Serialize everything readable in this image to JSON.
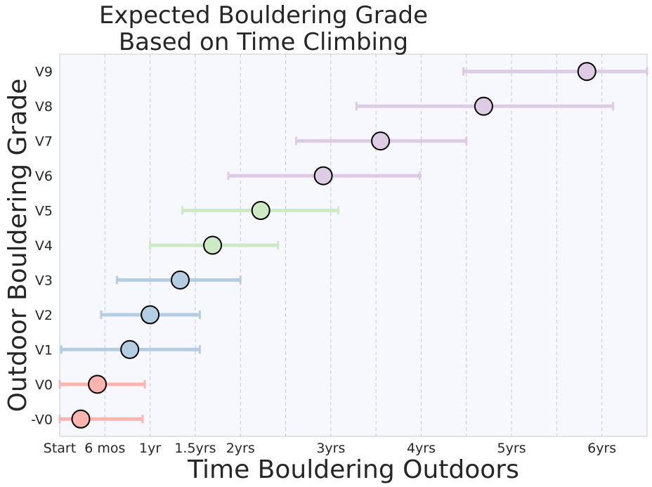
{
  "chart_data": {
    "type": "scatter",
    "title_line1": "Expected Bouldering Grade",
    "title_line2": "Based on Time Climbing",
    "xlabel": "Time Bouldering Outdoors",
    "ylabel": "Outdoor Bouldering Grade",
    "x_unit": "months",
    "xlim": [
      0,
      78
    ],
    "x_ticks": [
      {
        "value": 0,
        "label": "Start"
      },
      {
        "value": 6,
        "label": "6 mos"
      },
      {
        "value": 12,
        "label": "1yr"
      },
      {
        "value": 18,
        "label": "1.5yrs"
      },
      {
        "value": 24,
        "label": "2yrs"
      },
      {
        "value": 36,
        "label": "3yrs"
      },
      {
        "value": 48,
        "label": "4yrs"
      },
      {
        "value": 60,
        "label": "5yrs"
      },
      {
        "value": 72,
        "label": "6yrs"
      }
    ],
    "x_gridlines": [
      0,
      6,
      12,
      18,
      24,
      30,
      36,
      42,
      48,
      54,
      60,
      66,
      72,
      78
    ],
    "grid": "vertical dashed",
    "background_color": "#f7f8fd",
    "marker_edge_color": "#000000",
    "grades": [
      {
        "grade": "-V0",
        "value": 2.8,
        "low": 0,
        "high": 11,
        "color": "#fbb4ae"
      },
      {
        "grade": "V0",
        "value": 5,
        "low": 0,
        "high": 11.3,
        "color": "#fbb4ae"
      },
      {
        "grade": "V1",
        "value": 9.3,
        "low": 0.2,
        "high": 18.6,
        "color": "#b3cde3"
      },
      {
        "grade": "V2",
        "value": 12,
        "low": 5.5,
        "high": 18.6,
        "color": "#b3cde3"
      },
      {
        "grade": "V3",
        "value": 16,
        "low": 7.6,
        "high": 24,
        "color": "#b3cde3"
      },
      {
        "grade": "V4",
        "value": 20.3,
        "low": 12,
        "high": 29,
        "color": "#ccebc5"
      },
      {
        "grade": "V5",
        "value": 26.7,
        "low": 16.3,
        "high": 37,
        "color": "#ccebc5"
      },
      {
        "grade": "V6",
        "value": 35,
        "low": 22.4,
        "high": 47.8,
        "color": "#decbe4"
      },
      {
        "grade": "V7",
        "value": 42.6,
        "low": 31.4,
        "high": 54,
        "color": "#decbe4"
      },
      {
        "grade": "V8",
        "value": 56.3,
        "low": 39.4,
        "high": 73.5,
        "color": "#decbe4"
      },
      {
        "grade": "V9",
        "value": 70,
        "low": 53.6,
        "high": 78,
        "color": "#decbe4"
      }
    ]
  }
}
